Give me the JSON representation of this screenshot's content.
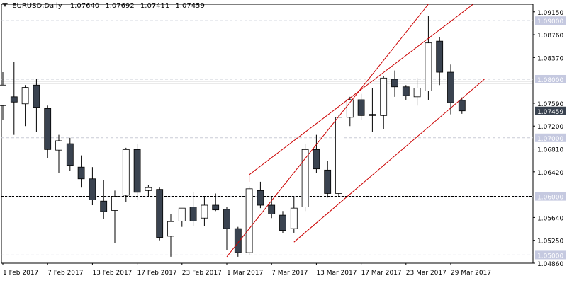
{
  "header": {
    "symbol": "EURUSD,Daily",
    "open": "1.07640",
    "high": "1.07692",
    "low": "1.07411",
    "close": "1.07459"
  },
  "colors": {
    "bear": "#3a4350",
    "bull": "#ffffff",
    "channel": "#cc0000",
    "grid": "#c9ccd6",
    "level_label_bg": "#c5c9e0",
    "price_label_bg": "#3a4350",
    "horizontal_line": "#555555"
  },
  "chart_data": {
    "type": "candlestick",
    "symbol": "EURUSD",
    "timeframe": "Daily",
    "ylim": [
      1.0486,
      1.0928
    ],
    "y_ticks": [
      "1.09150",
      "1.08760",
      "1.08370",
      "1.07590",
      "1.07200",
      "1.06810",
      "1.06420",
      "1.05640",
      "1.05250",
      "1.04860"
    ],
    "level_labels": [
      "1.09000",
      "1.08000",
      "1.07000",
      "1.06000",
      "1.05000"
    ],
    "current_price": "1.07459",
    "x_labels": [
      "1 Feb 2017",
      "7 Feb 2017",
      "13 Feb 2017",
      "17 Feb 2017",
      "23 Feb 2017",
      "1 Mar 2017",
      "7 Mar 2017",
      "13 Mar 2017",
      "17 Mar 2017",
      "23 Mar 2017",
      "29 Mar 2017"
    ],
    "x_label_candles": [
      0,
      4,
      8,
      12,
      16,
      20,
      24,
      28,
      32,
      36,
      40
    ],
    "horizontal_levels": [
      {
        "price": 1.0795,
        "style": "double"
      },
      {
        "price": 1.06,
        "style": "dashed"
      }
    ],
    "channel_lines": [
      {
        "from": [
          20,
          1.0497
        ],
        "to": [
          38,
          1.0928
        ]
      },
      {
        "from": [
          22,
          1.0637
        ],
        "to": [
          42,
          1.0928
        ]
      },
      {
        "from": [
          26,
          1.0522
        ],
        "to": [
          43,
          1.08
        ]
      }
    ],
    "candles": [
      {
        "o": 1.0755,
        "h": 1.0812,
        "l": 1.073,
        "c": 1.079
      },
      {
        "o": 1.077,
        "h": 1.083,
        "l": 1.0705,
        "c": 1.0761
      },
      {
        "o": 1.0758,
        "h": 1.079,
        "l": 1.072,
        "c": 1.0786
      },
      {
        "o": 1.079,
        "h": 1.08,
        "l": 1.071,
        "c": 1.0752
      },
      {
        "o": 1.075,
        "h": 1.0755,
        "l": 1.0665,
        "c": 1.068
      },
      {
        "o": 1.0679,
        "h": 1.0705,
        "l": 1.064,
        "c": 1.0695
      },
      {
        "o": 1.069,
        "h": 1.07,
        "l": 1.0644,
        "c": 1.0653
      },
      {
        "o": 1.065,
        "h": 1.067,
        "l": 1.0615,
        "c": 1.063
      },
      {
        "o": 1.063,
        "h": 1.065,
        "l": 1.0585,
        "c": 1.0594
      },
      {
        "o": 1.0592,
        "h": 1.0628,
        "l": 1.0562,
        "c": 1.0574
      },
      {
        "o": 1.0576,
        "h": 1.061,
        "l": 1.052,
        "c": 1.06
      },
      {
        "o": 1.0602,
        "h": 1.0683,
        "l": 1.059,
        "c": 1.068
      },
      {
        "o": 1.068,
        "h": 1.069,
        "l": 1.0595,
        "c": 1.0607
      },
      {
        "o": 1.061,
        "h": 1.062,
        "l": 1.06,
        "c": 1.0615
      },
      {
        "o": 1.0612,
        "h": 1.0615,
        "l": 1.0525,
        "c": 1.053
      },
      {
        "o": 1.0532,
        "h": 1.057,
        "l": 1.0497,
        "c": 1.0557
      },
      {
        "o": 1.0558,
        "h": 1.058,
        "l": 1.0548,
        "c": 1.058
      },
      {
        "o": 1.0582,
        "h": 1.0608,
        "l": 1.055,
        "c": 1.0558
      },
      {
        "o": 1.0563,
        "h": 1.06,
        "l": 1.055,
        "c": 1.0585
      },
      {
        "o": 1.0585,
        "h": 1.0605,
        "l": 1.0575,
        "c": 1.0577
      },
      {
        "o": 1.0578,
        "h": 1.0582,
        "l": 1.0508,
        "c": 1.0545
      },
      {
        "o": 1.0545,
        "h": 1.0548,
        "l": 1.0497,
        "c": 1.0504
      },
      {
        "o": 1.0504,
        "h": 1.0617,
        "l": 1.05,
        "c": 1.0613
      },
      {
        "o": 1.061,
        "h": 1.0625,
        "l": 1.058,
        "c": 1.0585
      },
      {
        "o": 1.0585,
        "h": 1.06,
        "l": 1.0563,
        "c": 1.057
      },
      {
        "o": 1.0568,
        "h": 1.0575,
        "l": 1.0538,
        "c": 1.0542
      },
      {
        "o": 1.0545,
        "h": 1.06,
        "l": 1.0538,
        "c": 1.058
      },
      {
        "o": 1.0582,
        "h": 1.069,
        "l": 1.0575,
        "c": 1.068
      },
      {
        "o": 1.068,
        "h": 1.0705,
        "l": 1.064,
        "c": 1.0647
      },
      {
        "o": 1.0645,
        "h": 1.066,
        "l": 1.0598,
        "c": 1.0605
      },
      {
        "o": 1.0605,
        "h": 1.0738,
        "l": 1.06,
        "c": 1.0735
      },
      {
        "o": 1.0735,
        "h": 1.077,
        "l": 1.072,
        "c": 1.0765
      },
      {
        "o": 1.0765,
        "h": 1.0775,
        "l": 1.073,
        "c": 1.0738
      },
      {
        "o": 1.0738,
        "h": 1.0785,
        "l": 1.071,
        "c": 1.074
      },
      {
        "o": 1.0738,
        "h": 1.0806,
        "l": 1.0715,
        "c": 1.0802
      },
      {
        "o": 1.08,
        "h": 1.0815,
        "l": 1.077,
        "c": 1.0787
      },
      {
        "o": 1.0787,
        "h": 1.079,
        "l": 1.0765,
        "c": 1.0772
      },
      {
        "o": 1.077,
        "h": 1.0802,
        "l": 1.0755,
        "c": 1.0785
      },
      {
        "o": 1.078,
        "h": 1.0908,
        "l": 1.0765,
        "c": 1.0862
      },
      {
        "o": 1.0865,
        "h": 1.0872,
        "l": 1.079,
        "c": 1.0812
      },
      {
        "o": 1.0812,
        "h": 1.0825,
        "l": 1.074,
        "c": 1.076
      },
      {
        "o": 1.0764,
        "h": 1.0769,
        "l": 1.0741,
        "c": 1.0746
      }
    ]
  }
}
